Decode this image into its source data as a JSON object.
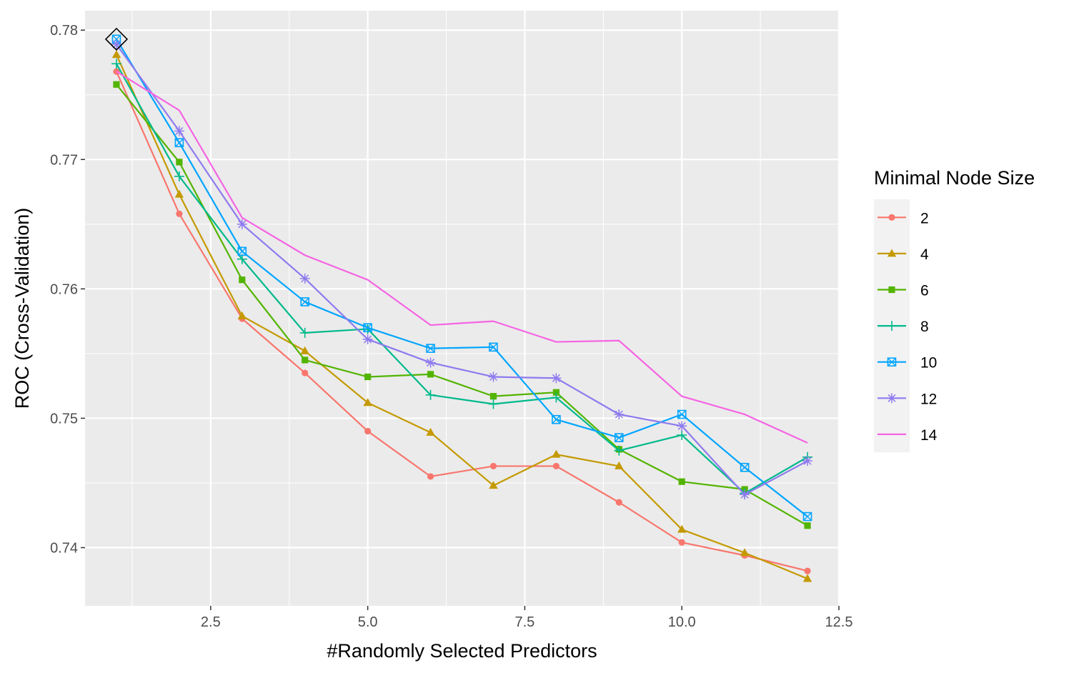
{
  "chart_data": {
    "type": "line",
    "xlabel": "#Randomly Selected Predictors",
    "ylabel": "ROC (Cross-Validation)",
    "xlim": [
      0.5,
      12.5
    ],
    "ylim": [
      0.7355,
      0.7815
    ],
    "x_ticks": [
      2.5,
      5.0,
      7.5,
      10.0,
      12.5
    ],
    "x_tick_labels": [
      "2.5",
      "5.0",
      "7.5",
      "10.0",
      "12.5"
    ],
    "y_ticks": [
      0.74,
      0.75,
      0.76,
      0.77,
      0.78
    ],
    "y_tick_labels": [
      "0.74",
      "0.75",
      "0.76",
      "0.77",
      "0.78"
    ],
    "grid": true,
    "legend": {
      "title": "Minimal Node Size",
      "position": "right"
    },
    "x": [
      1,
      2,
      3,
      4,
      5,
      6,
      7,
      8,
      9,
      10,
      11,
      12
    ],
    "series": [
      {
        "name": "2",
        "color": "#F8766D",
        "marker": "circle",
        "values": [
          0.7768,
          0.7658,
          0.7577,
          0.7535,
          0.749,
          0.7455,
          0.7463,
          0.7463,
          0.7435,
          0.7404,
          0.7394,
          0.7382
        ]
      },
      {
        "name": "4",
        "color": "#C49A00",
        "marker": "triangle",
        "values": [
          0.7781,
          0.7673,
          0.7579,
          0.7552,
          0.7512,
          0.7489,
          0.7448,
          0.7472,
          0.7463,
          0.7414,
          0.7396,
          0.7376
        ]
      },
      {
        "name": "6",
        "color": "#53B400",
        "marker": "square",
        "values": [
          0.7758,
          0.7698,
          0.7607,
          0.7545,
          0.7532,
          0.7534,
          0.7517,
          0.752,
          0.7476,
          0.7451,
          0.7445,
          0.7417
        ]
      },
      {
        "name": "8",
        "color": "#00B98B",
        "marker": "plus",
        "values": [
          0.7774,
          0.7687,
          0.7623,
          0.7566,
          0.7569,
          0.7518,
          0.7511,
          0.7516,
          0.7475,
          0.7487,
          0.7442,
          0.747
        ]
      },
      {
        "name": "10",
        "color": "#00A5FF",
        "marker": "boxx",
        "values": [
          0.7793,
          0.7713,
          0.7629,
          0.759,
          0.757,
          0.7554,
          0.7555,
          0.7499,
          0.7485,
          0.7503,
          0.7462,
          0.7424
        ]
      },
      {
        "name": "12",
        "color": "#8F7AEE",
        "marker": "asterisk",
        "values": [
          0.7789,
          0.7722,
          0.765,
          0.7608,
          0.7561,
          0.7543,
          0.7532,
          0.7531,
          0.7503,
          0.7494,
          0.7441,
          0.7467
        ]
      },
      {
        "name": "14",
        "color": "#F564E3",
        "marker": "none",
        "values": [
          0.7768,
          0.7738,
          0.7655,
          0.7626,
          0.7607,
          0.7572,
          0.7575,
          0.7559,
          0.756,
          0.7517,
          0.7503,
          0.7481
        ]
      }
    ],
    "best_point": {
      "x": 1,
      "y": 0.7793,
      "marker": "diamond"
    },
    "colors": {
      "panel": "#EBEBEB",
      "grid": "#FFFFFF",
      "legend_key": "#F2F2F2"
    }
  }
}
